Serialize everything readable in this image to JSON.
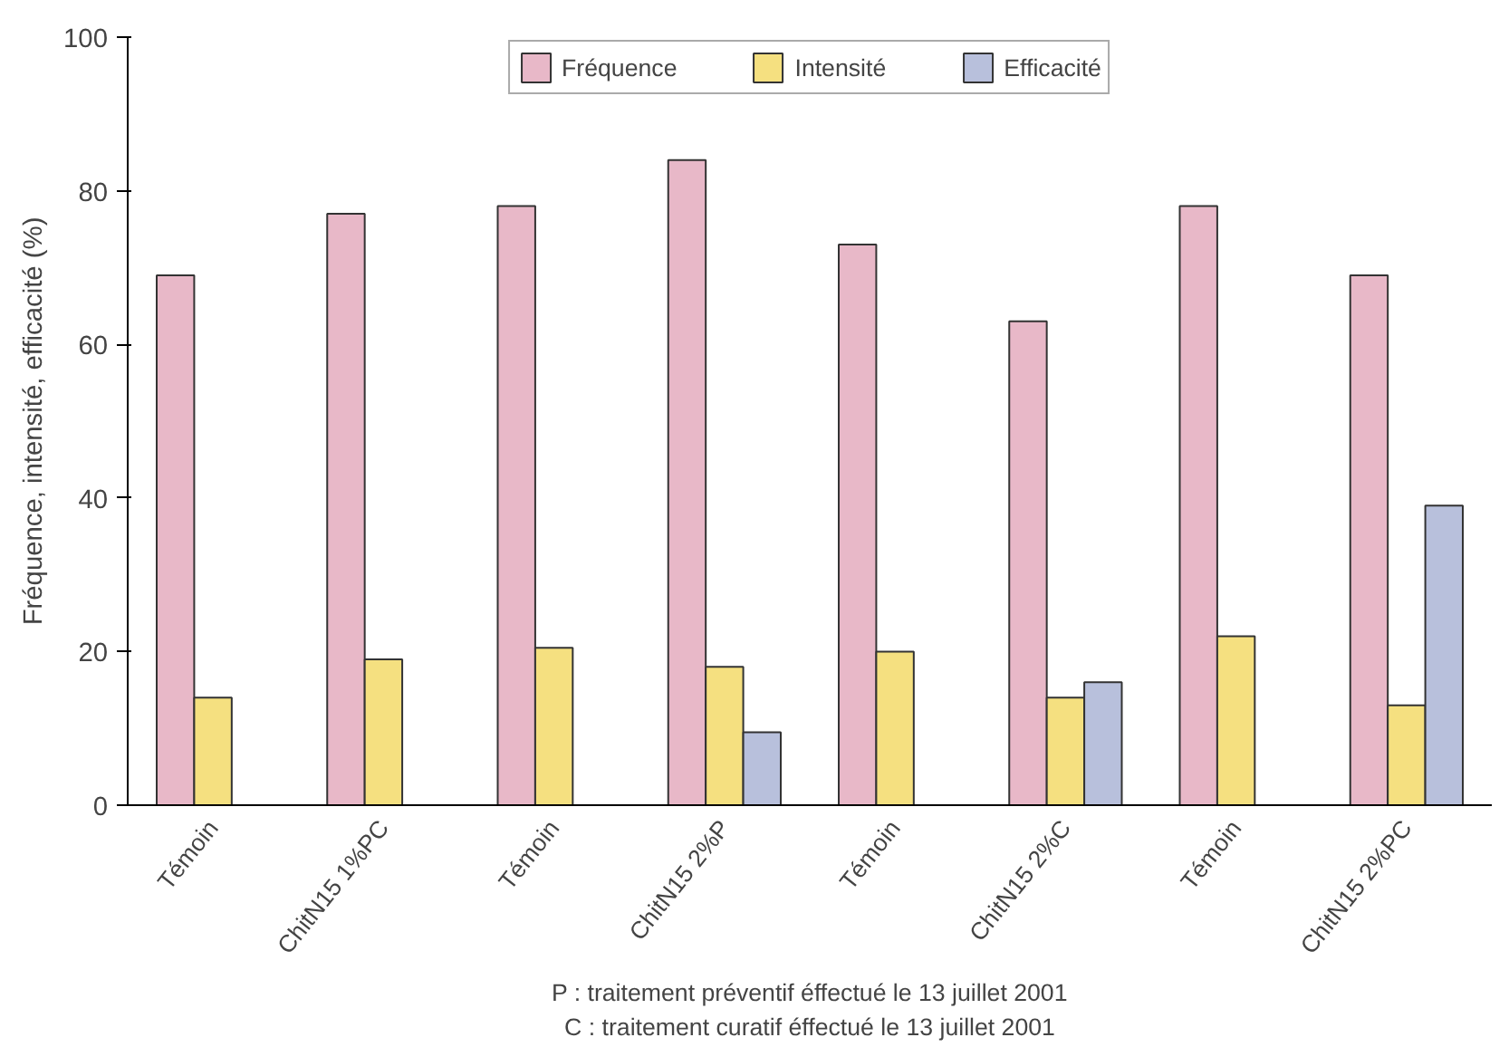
{
  "chart_data": {
    "type": "bar",
    "ylabel": "Fréquence, intensité, efficacité (%)",
    "categories": [
      "Témoin",
      "ChitN15 1%PC",
      "Témoin",
      "ChitN15 2%P",
      "Témoin",
      "ChitN15 2%C",
      "Témoin",
      "ChitN15 2%PC"
    ],
    "series": [
      {
        "name": "Fréquence",
        "color": "#e8b8c8",
        "values": [
          69,
          77,
          78,
          84,
          73,
          63,
          78,
          69
        ]
      },
      {
        "name": "Intensité",
        "color": "#f5e080",
        "values": [
          14,
          19,
          20.5,
          18,
          20,
          14,
          22,
          13
        ]
      },
      {
        "name": "Efficacité",
        "color": "#b8c0dc",
        "values": [
          null,
          null,
          null,
          9.5,
          null,
          16,
          null,
          39
        ]
      }
    ],
    "ylim": [
      0,
      100
    ],
    "yticks": [
      0,
      20,
      40,
      60,
      80,
      100
    ],
    "grid": false,
    "legend": "top",
    "annotations": [
      "P : traitement préventif éffectué le 13 juillet 2001",
      "C : traitement curatif éffectué le 13 juillet 2001"
    ]
  }
}
